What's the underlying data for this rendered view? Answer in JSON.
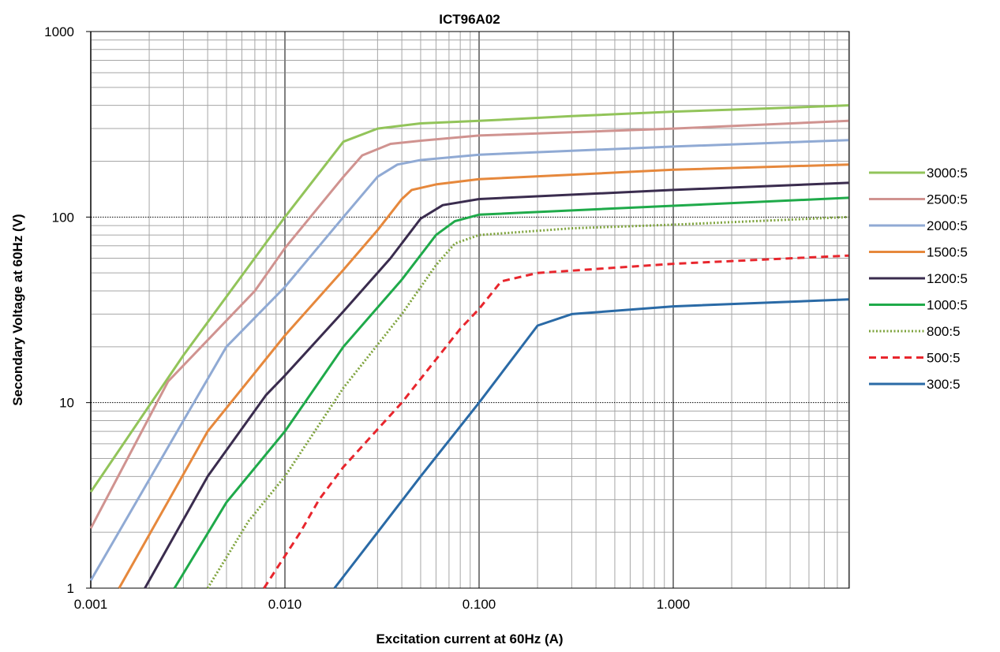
{
  "chart_data": {
    "type": "line",
    "title": "ICT96A02",
    "xlabel": "Excitation current at 60Hz (A)",
    "ylabel": "Secondary Voltage at 60Hz (V)",
    "x_scale": "log",
    "y_scale": "log",
    "xlim": [
      0.001,
      8
    ],
    "ylim": [
      1,
      1000
    ],
    "x_tick_labels": [
      {
        "value": 0.001,
        "label": "0.001"
      },
      {
        "value": 0.01,
        "label": "0.010"
      },
      {
        "value": 0.1,
        "label": "0.100"
      },
      {
        "value": 1,
        "label": "1.000"
      }
    ],
    "y_tick_labels": [
      {
        "value": 1,
        "label": "1"
      },
      {
        "value": 10,
        "label": "10"
      },
      {
        "value": 100,
        "label": "100"
      },
      {
        "value": 1000,
        "label": "1000"
      }
    ],
    "grid": true,
    "legend_position": "right",
    "series": [
      {
        "name": "3000:5",
        "color": "#92c45a",
        "dash": "solid",
        "points": [
          [
            0.001,
            3.3
          ],
          [
            0.003,
            18
          ],
          [
            0.01,
            100
          ],
          [
            0.02,
            255
          ],
          [
            0.03,
            300
          ],
          [
            0.05,
            320
          ],
          [
            0.1,
            330
          ],
          [
            0.3,
            350
          ],
          [
            1,
            370
          ],
          [
            3,
            385
          ],
          [
            8,
            400
          ]
        ]
      },
      {
        "name": "2500:5",
        "color": "#d09390",
        "dash": "solid",
        "points": [
          [
            0.001,
            2.1
          ],
          [
            0.0025,
            13
          ],
          [
            0.007,
            40
          ],
          [
            0.01,
            68
          ],
          [
            0.02,
            165
          ],
          [
            0.025,
            215
          ],
          [
            0.035,
            248
          ],
          [
            0.05,
            258
          ],
          [
            0.1,
            275
          ],
          [
            1,
            300
          ],
          [
            8,
            330
          ]
        ]
      },
      {
        "name": "2000:5",
        "color": "#90aad4",
        "dash": "solid",
        "points": [
          [
            0.001,
            1.1
          ],
          [
            0.003,
            8
          ],
          [
            0.005,
            20
          ],
          [
            0.01,
            42
          ],
          [
            0.02,
            100
          ],
          [
            0.03,
            165
          ],
          [
            0.038,
            192
          ],
          [
            0.05,
            203
          ],
          [
            0.1,
            217
          ],
          [
            1,
            240
          ],
          [
            8,
            260
          ]
        ]
      },
      {
        "name": "1500:5",
        "color": "#e6883c",
        "dash": "solid",
        "points": [
          [
            0.0014,
            1
          ],
          [
            0.004,
            7
          ],
          [
            0.01,
            23
          ],
          [
            0.02,
            52
          ],
          [
            0.03,
            85
          ],
          [
            0.04,
            125
          ],
          [
            0.045,
            140
          ],
          [
            0.06,
            150
          ],
          [
            0.1,
            160
          ],
          [
            1,
            180
          ],
          [
            8,
            192
          ]
        ]
      },
      {
        "name": "1200:5",
        "color": "#3a2c4e",
        "dash": "solid",
        "points": [
          [
            0.0019,
            1
          ],
          [
            0.004,
            4
          ],
          [
            0.008,
            11
          ],
          [
            0.01,
            14
          ],
          [
            0.02,
            31
          ],
          [
            0.035,
            60
          ],
          [
            0.05,
            98
          ],
          [
            0.065,
            116
          ],
          [
            0.1,
            125
          ],
          [
            1,
            140
          ],
          [
            8,
            153
          ]
        ]
      },
      {
        "name": "1000:5",
        "color": "#1faa4a",
        "dash": "solid",
        "points": [
          [
            0.0027,
            1
          ],
          [
            0.005,
            2.9
          ],
          [
            0.01,
            7
          ],
          [
            0.02,
            20
          ],
          [
            0.04,
            46
          ],
          [
            0.06,
            80
          ],
          [
            0.075,
            95
          ],
          [
            0.1,
            103
          ],
          [
            1,
            115
          ],
          [
            8,
            127
          ]
        ]
      },
      {
        "name": "800:5",
        "color": "#7ea33c",
        "dash": "dotted",
        "points": [
          [
            0.004,
            1
          ],
          [
            0.0065,
            2.3
          ],
          [
            0.01,
            4
          ],
          [
            0.02,
            12
          ],
          [
            0.04,
            30
          ],
          [
            0.06,
            55
          ],
          [
            0.075,
            72
          ],
          [
            0.1,
            80
          ],
          [
            0.3,
            87
          ],
          [
            1,
            91
          ],
          [
            8,
            100
          ]
        ]
      },
      {
        "name": "500:5",
        "color": "#e8262d",
        "dash": "dashed",
        "points": [
          [
            0.0078,
            1
          ],
          [
            0.012,
            2
          ],
          [
            0.015,
            3
          ],
          [
            0.02,
            4.5
          ],
          [
            0.04,
            10
          ],
          [
            0.08,
            25
          ],
          [
            0.1,
            32
          ],
          [
            0.13,
            45
          ],
          [
            0.2,
            50
          ],
          [
            1,
            56
          ],
          [
            8,
            62
          ]
        ]
      },
      {
        "name": "300:5",
        "color": "#2a6aa6",
        "dash": "solid",
        "points": [
          [
            0.018,
            1
          ],
          [
            0.03,
            2
          ],
          [
            0.05,
            4
          ],
          [
            0.1,
            10
          ],
          [
            0.2,
            26
          ],
          [
            0.3,
            30
          ],
          [
            1,
            33
          ],
          [
            8,
            36
          ]
        ]
      }
    ]
  }
}
